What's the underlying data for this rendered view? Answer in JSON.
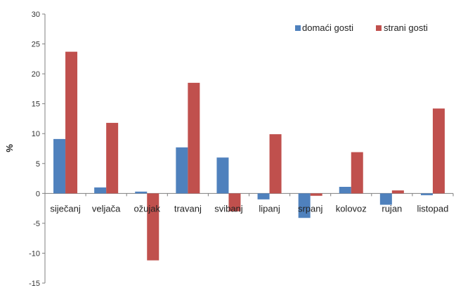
{
  "chart_data": {
    "type": "bar",
    "title": "",
    "xlabel": "",
    "ylabel": "%",
    "ylim": [
      -15,
      30
    ],
    "yticks": [
      30,
      25,
      20,
      15,
      10,
      5,
      0,
      -5,
      -10,
      -15
    ],
    "grid": false,
    "legend_position": "top-right",
    "categories": [
      "siječanj",
      "veljača",
      "ožujak",
      "travanj",
      "svibanj",
      "lipanj",
      "srpanj",
      "kolovoz",
      "rujan",
      "listopad"
    ],
    "series": [
      {
        "name": "domaći gosti",
        "color": "#4f81bd",
        "values": [
          9.1,
          1.0,
          0.3,
          7.7,
          6.0,
          -1.0,
          -4.1,
          1.1,
          -1.9,
          -0.3
        ]
      },
      {
        "name": "strani gosti",
        "color": "#c0504d",
        "values": [
          23.7,
          11.8,
          -11.2,
          18.5,
          -3.0,
          9.9,
          -0.4,
          6.9,
          0.5,
          14.2
        ]
      }
    ]
  }
}
